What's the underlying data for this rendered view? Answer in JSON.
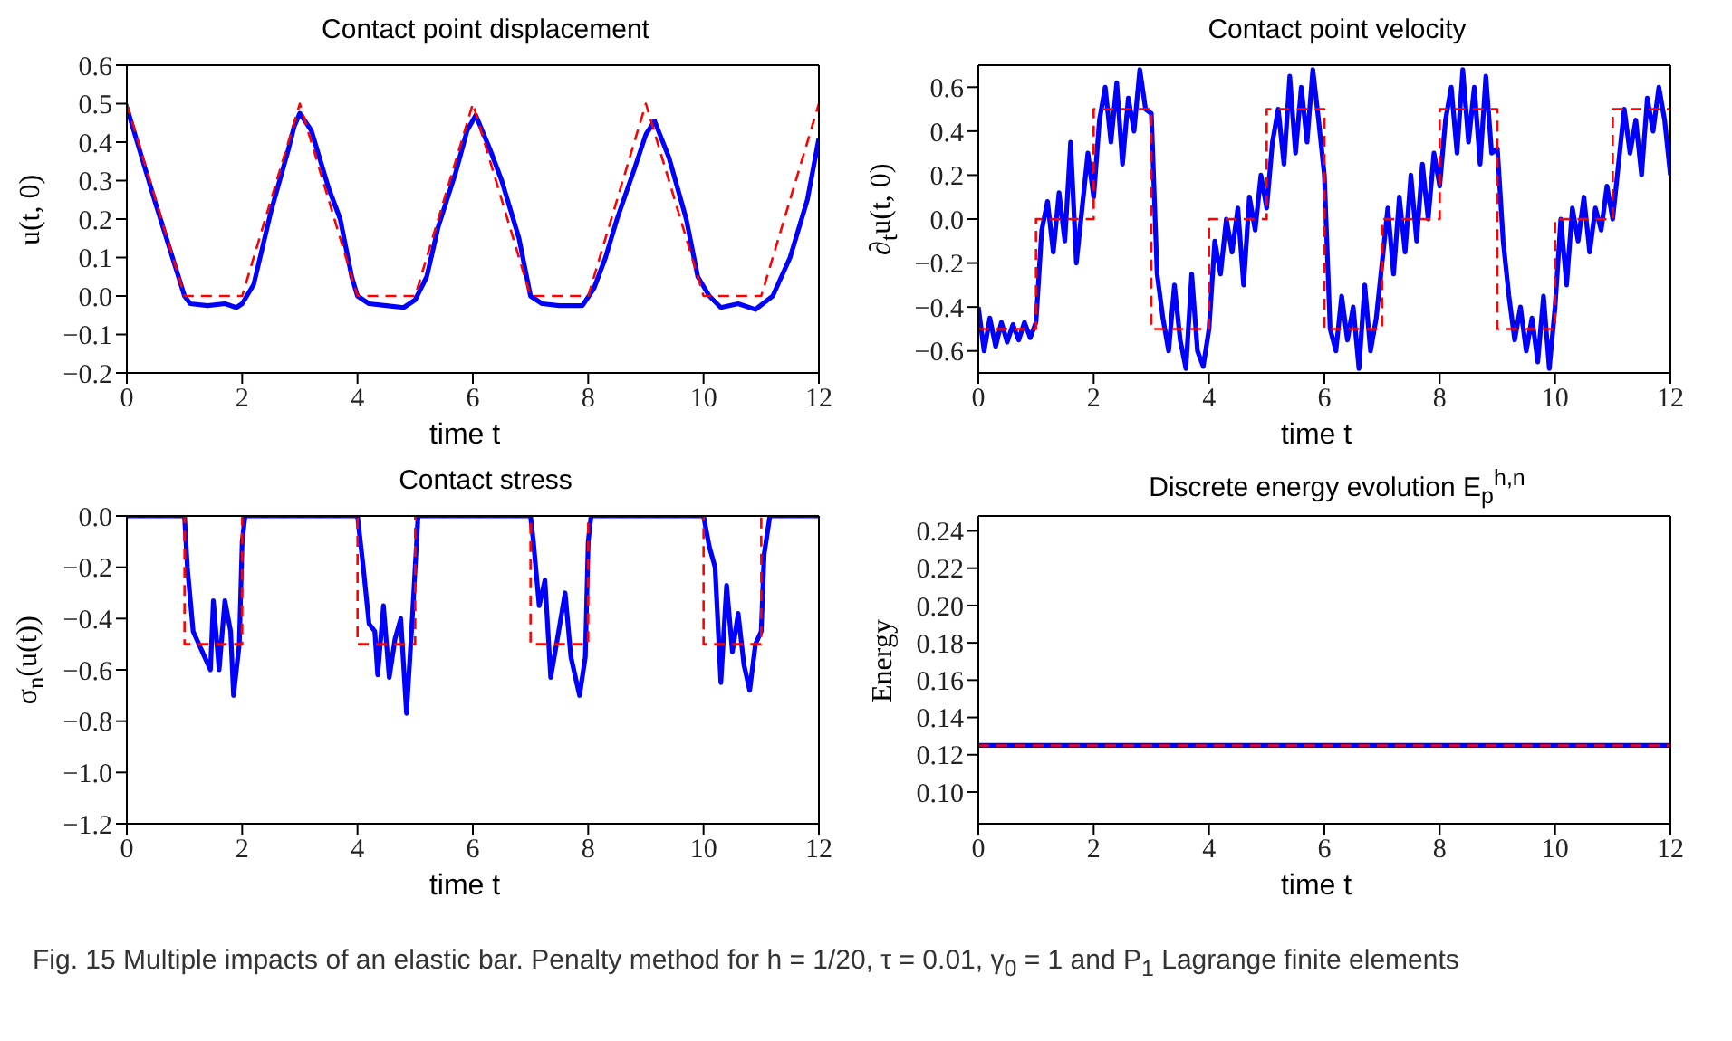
{
  "chart_data": [
    {
      "type": "line",
      "title": "Contact point displacement",
      "xlabel": "time t",
      "ylabel": "u(t, 0)",
      "xlim": [
        0,
        12
      ],
      "xticks": [
        0,
        2,
        4,
        6,
        8,
        10,
        12
      ],
      "ylim": [
        -0.2,
        0.6
      ],
      "yticks": [
        {
          "value": -0.2,
          "label": "−0.2"
        },
        {
          "value": -0.1,
          "label": "−0.1"
        },
        {
          "value": 0,
          "label": "0.0"
        },
        {
          "value": 0.1,
          "label": "0.1"
        },
        {
          "value": 0.2,
          "label": "0.2"
        },
        {
          "value": 0.3,
          "label": "0.3"
        },
        {
          "value": 0.4,
          "label": "0.4"
        },
        {
          "value": 0.5,
          "label": "0.5"
        },
        {
          "value": 0.6,
          "label": "0.6"
        }
      ],
      "series": [
        {
          "color": "#0000ff",
          "line_style": "solid",
          "x": [
            0,
            0.5,
            1,
            1.1,
            1.4,
            1.7,
            1.9,
            2,
            2.2,
            2.5,
            2.8,
            2.9,
            3,
            3.2,
            3.5,
            3.7,
            3.9,
            4,
            4.2,
            4.5,
            4.8,
            5,
            5.2,
            5.4,
            5.7,
            5.9,
            6.05,
            6.3,
            6.5,
            6.8,
            7,
            7.2,
            7.5,
            7.9,
            8.1,
            8.3,
            8.5,
            8.8,
            9,
            9.15,
            9.4,
            9.7,
            9.9,
            10.1,
            10.3,
            10.6,
            10.9,
            11.2,
            11.5,
            11.8,
            12
          ],
          "values": [
            0.49,
            0.24,
            0,
            -0.02,
            -0.025,
            -0.02,
            -0.03,
            -0.02,
            0.03,
            0.22,
            0.38,
            0.44,
            0.475,
            0.43,
            0.28,
            0.2,
            0.05,
            0,
            -0.02,
            -0.025,
            -0.03,
            -0.01,
            0.05,
            0.18,
            0.32,
            0.43,
            0.47,
            0.38,
            0.3,
            0.15,
            0,
            -0.02,
            -0.025,
            -0.025,
            0.02,
            0.1,
            0.2,
            0.33,
            0.42,
            0.455,
            0.36,
            0.2,
            0.05,
            0,
            -0.03,
            -0.02,
            -0.035,
            0,
            0.1,
            0.25,
            0.41
          ]
        },
        {
          "color": "#ff0000",
          "line_style": "dashed",
          "x": [
            0,
            1,
            2,
            3,
            4,
            5,
            6,
            7,
            8,
            9,
            10,
            11,
            12
          ],
          "values": [
            0.5,
            0,
            0,
            0.5,
            0,
            0,
            0.5,
            0,
            0,
            0.5,
            0,
            0,
            0.5
          ]
        }
      ]
    },
    {
      "type": "line",
      "title": "Contact point velocity",
      "xlabel": "time t",
      "ylabel": "∂$_{t}$u(t, 0)",
      "xlim": [
        0,
        12
      ],
      "xticks": [
        0,
        2,
        4,
        6,
        8,
        10,
        12
      ],
      "ylim": [
        -0.7,
        0.7
      ],
      "yticks": [
        {
          "value": -0.6,
          "label": "−0.6"
        },
        {
          "value": -0.4,
          "label": "−0.4"
        },
        {
          "value": -0.2,
          "label": "−0.2"
        },
        {
          "value": 0,
          "label": "0.0"
        },
        {
          "value": 0.2,
          "label": "0.2"
        },
        {
          "value": 0.4,
          "label": "0.4"
        },
        {
          "value": 0.6,
          "label": "0.6"
        }
      ],
      "series": [
        {
          "color": "#0000ff",
          "line_style": "solid",
          "x": [
            0,
            0.1,
            0.2,
            0.3,
            0.4,
            0.5,
            0.6,
            0.7,
            0.8,
            0.9,
            1,
            1.1,
            1.2,
            1.3,
            1.4,
            1.5,
            1.6,
            1.7,
            1.8,
            1.9,
            2,
            2.1,
            2.2,
            2.3,
            2.4,
            2.5,
            2.6,
            2.7,
            2.8,
            2.9,
            3,
            3.1,
            3.2,
            3.3,
            3.4,
            3.5,
            3.6,
            3.7,
            3.8,
            3.9,
            4,
            4.1,
            4.2,
            4.3,
            4.4,
            4.5,
            4.6,
            4.7,
            4.8,
            4.9,
            5,
            5.1,
            5.2,
            5.3,
            5.4,
            5.5,
            5.6,
            5.7,
            5.8,
            5.9,
            6,
            6.1,
            6.2,
            6.3,
            6.4,
            6.5,
            6.6,
            6.7,
            6.8,
            6.9,
            7,
            7.1,
            7.2,
            7.3,
            7.4,
            7.5,
            7.6,
            7.7,
            7.8,
            7.9,
            8,
            8.1,
            8.2,
            8.3,
            8.4,
            8.5,
            8.6,
            8.7,
            8.8,
            8.9,
            9,
            9.1,
            9.2,
            9.3,
            9.4,
            9.5,
            9.6,
            9.7,
            9.8,
            9.9,
            10,
            10.1,
            10.2,
            10.3,
            10.4,
            10.5,
            10.6,
            10.7,
            10.8,
            10.9,
            11,
            11.1,
            11.2,
            11.3,
            11.4,
            11.5,
            11.6,
            11.7,
            11.8,
            11.9,
            12
          ],
          "values": [
            -0.4,
            -0.6,
            -0.45,
            -0.58,
            -0.47,
            -0.56,
            -0.48,
            -0.55,
            -0.47,
            -0.54,
            -0.47,
            -0.05,
            0.08,
            -0.15,
            0.12,
            -0.1,
            0.35,
            -0.2,
            0.05,
            0.3,
            0.1,
            0.45,
            0.6,
            0.35,
            0.62,
            0.25,
            0.55,
            0.4,
            0.68,
            0.5,
            0.48,
            -0.25,
            -0.45,
            -0.6,
            -0.3,
            -0.55,
            -0.68,
            -0.25,
            -0.6,
            -0.67,
            -0.5,
            -0.1,
            -0.25,
            0,
            -0.15,
            0.05,
            -0.3,
            0.1,
            -0.05,
            0.2,
            0.05,
            0.35,
            0.5,
            0.25,
            0.65,
            0.3,
            0.6,
            0.35,
            0.68,
            0.45,
            0.2,
            -0.5,
            -0.6,
            -0.35,
            -0.55,
            -0.4,
            -0.68,
            -0.3,
            -0.6,
            -0.45,
            -0.2,
            0.05,
            -0.25,
            0.1,
            -0.15,
            0.2,
            -0.1,
            0.25,
            0,
            0.3,
            0.15,
            0.45,
            0.6,
            0.3,
            0.68,
            0.35,
            0.6,
            0.25,
            0.65,
            0.3,
            0.32,
            -0.1,
            -0.35,
            -0.55,
            -0.4,
            -0.6,
            -0.45,
            -0.65,
            -0.35,
            -0.68,
            -0.4,
            0,
            -0.3,
            0.05,
            -0.1,
            0.1,
            -0.15,
            0.05,
            -0.05,
            0.15,
            0,
            0.25,
            0.5,
            0.3,
            0.45,
            0.2,
            0.55,
            0.4,
            0.6,
            0.45,
            0.2
          ]
        },
        {
          "type": "step",
          "color": "#ff0000",
          "line_style": "dashed",
          "x": [
            0,
            1,
            2,
            3,
            4,
            5,
            6,
            7,
            8,
            9,
            10,
            11,
            12
          ],
          "values": [
            -0.5,
            0,
            0.5,
            -0.5,
            0,
            0.5,
            -0.5,
            0,
            0.5,
            -0.5,
            0,
            0.5,
            0.5
          ]
        }
      ]
    },
    {
      "type": "line",
      "title": "Contact stress",
      "xlabel": "time t",
      "ylabel": "σ$_{n}$(u(t))",
      "xlim": [
        0,
        12
      ],
      "xticks": [
        0,
        2,
        4,
        6,
        8,
        10,
        12
      ],
      "ylim": [
        -1.2,
        0
      ],
      "yticks": [
        {
          "value": -1.2,
          "label": "−1.2"
        },
        {
          "value": -1,
          "label": "−1.0"
        },
        {
          "value": -0.8,
          "label": "−0.8"
        },
        {
          "value": -0.6,
          "label": "−0.6"
        },
        {
          "value": -0.4,
          "label": "−0.4"
        },
        {
          "value": -0.2,
          "label": "−0.2"
        },
        {
          "value": 0,
          "label": "0.0"
        }
      ],
      "series": [
        {
          "color": "#0000ff",
          "line_style": "solid",
          "x": [
            0,
            1,
            1.05,
            1.15,
            1.25,
            1.35,
            1.45,
            1.5,
            1.6,
            1.7,
            1.8,
            1.85,
            1.95,
            2,
            2.05,
            4,
            4.1,
            4.2,
            4.3,
            4.35,
            4.45,
            4.55,
            4.65,
            4.75,
            4.85,
            4.95,
            5.05,
            7,
            7.05,
            7.15,
            7.25,
            7.35,
            7.45,
            7.6,
            7.7,
            7.85,
            7.95,
            8,
            8.05,
            10,
            10.1,
            10.2,
            10.3,
            10.4,
            10.5,
            10.6,
            10.7,
            10.8,
            10.9,
            11,
            11.05,
            11.15,
            12
          ],
          "values": [
            0,
            0,
            -0.2,
            -0.45,
            -0.5,
            -0.55,
            -0.6,
            -0.33,
            -0.6,
            -0.33,
            -0.45,
            -0.7,
            -0.5,
            -0.1,
            0,
            0,
            -0.2,
            -0.42,
            -0.45,
            -0.62,
            -0.35,
            -0.63,
            -0.48,
            -0.4,
            -0.77,
            -0.4,
            0,
            0,
            -0.1,
            -0.35,
            -0.25,
            -0.63,
            -0.5,
            -0.3,
            -0.55,
            -0.7,
            -0.55,
            -0.1,
            0,
            0,
            -0.12,
            -0.2,
            -0.65,
            -0.27,
            -0.53,
            -0.38,
            -0.58,
            -0.68,
            -0.5,
            -0.45,
            -0.15,
            0,
            0
          ]
        },
        {
          "type": "step",
          "color": "#ff0000",
          "line_style": "dashed",
          "x": [
            0,
            1,
            2,
            4,
            5,
            7,
            8,
            10,
            11,
            12
          ],
          "values": [
            0,
            -0.5,
            0,
            -0.5,
            0,
            -0.5,
            0,
            -0.5,
            0,
            0
          ]
        }
      ]
    },
    {
      "type": "line",
      "title": "Discrete energy evolution E$_{p}$$^{h,n}$",
      "xlabel": "time t",
      "ylabel": "Energy",
      "xlim": [
        0,
        12
      ],
      "xticks": [
        0,
        2,
        4,
        6,
        8,
        10,
        12
      ],
      "ylim": [
        0.083,
        0.248
      ],
      "yticks": [
        {
          "value": 0.1,
          "label": "0.10"
        },
        {
          "value": 0.12,
          "label": "0.12"
        },
        {
          "value": 0.14,
          "label": "0.14"
        },
        {
          "value": 0.16,
          "label": "0.16"
        },
        {
          "value": 0.18,
          "label": "0.18"
        },
        {
          "value": 0.2,
          "label": "0.20"
        },
        {
          "value": 0.22,
          "label": "0.22"
        },
        {
          "value": 0.24,
          "label": "0.24"
        }
      ],
      "annotations": [
        "Fig. 15  Multiple impacts of an elastic bar. Penalty method for h = 1/20, τ = 0.01, γ$_{0}$ = 1 and P$_{1}$ Lagrange finite elements"
      ],
      "series": [
        {
          "color": "#0000ff",
          "line_style": "solid",
          "x": [
            0,
            12
          ],
          "values": [
            0.125,
            0.125
          ]
        },
        {
          "color": "#ff0000",
          "line_style": "dashed",
          "x": [
            0,
            12
          ],
          "values": [
            0.125,
            0.125
          ]
        }
      ]
    }
  ]
}
